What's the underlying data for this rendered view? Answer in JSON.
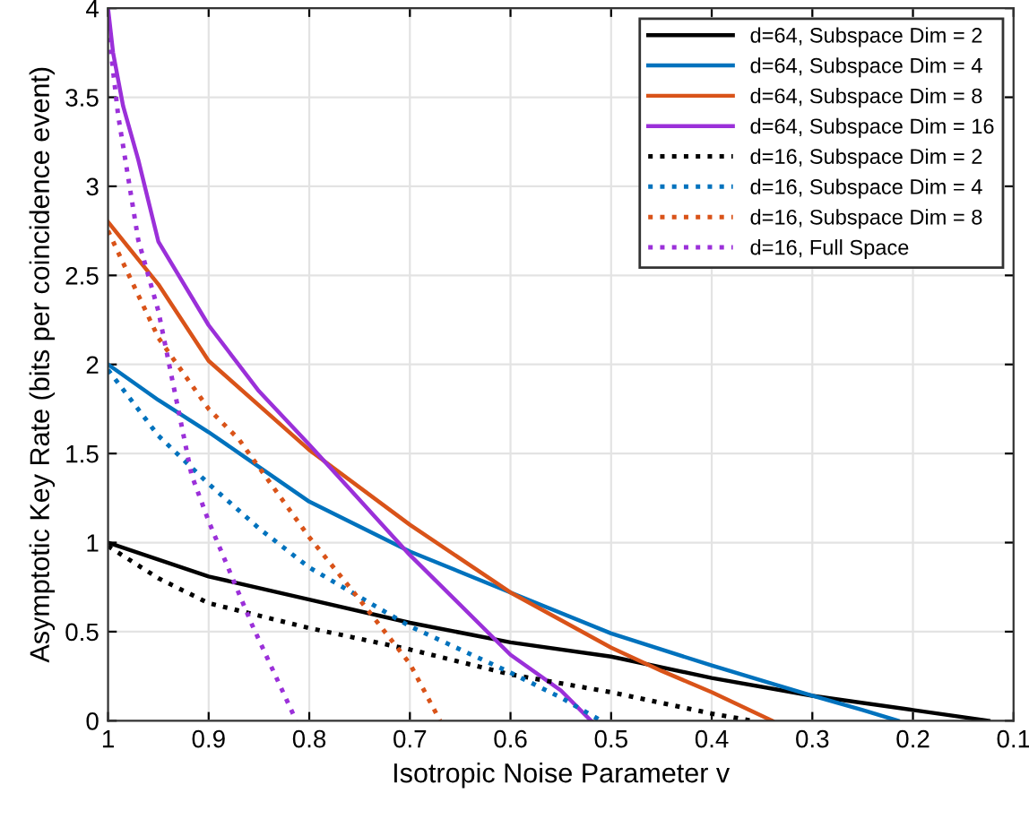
{
  "chart_data": {
    "type": "line",
    "xlabel": "Isotropic Noise Parameter v",
    "ylabel": "Asymptotic Key Rate (bits per coincidence event)",
    "xlim": [
      1,
      0.1
    ],
    "xticks": [
      1,
      0.9,
      0.8,
      0.7,
      0.6,
      0.5,
      0.4,
      0.3,
      0.2,
      0.1
    ],
    "ylim": [
      0,
      4
    ],
    "yticks": [
      0,
      0.5,
      1,
      1.5,
      2,
      2.5,
      3,
      3.5,
      4
    ],
    "grid": true,
    "legend": "top right",
    "series": [
      {
        "name": "d=64, Subspace Dim = 2",
        "color": "#000000",
        "line_style": "solid",
        "x": [
          1,
          0.9,
          0.8,
          0.7,
          0.6,
          0.5,
          0.4,
          0.3,
          0.2,
          0.125
        ],
        "values": [
          1,
          0.81,
          0.68,
          0.55,
          0.44,
          0.36,
          0.24,
          0.14,
          0.06,
          0
        ]
      },
      {
        "name": "d=64, Subspace Dim = 4",
        "color": "#0072bd",
        "line_style": "solid",
        "x": [
          1,
          0.95,
          0.9,
          0.8,
          0.7,
          0.6,
          0.5,
          0.4,
          0.3,
          0.25,
          0.215
        ],
        "values": [
          2,
          1.8,
          1.62,
          1.23,
          0.95,
          0.72,
          0.49,
          0.31,
          0.14,
          0.06,
          0
        ]
      },
      {
        "name": "d=64, Subspace Dim = 8",
        "color": "#d95319",
        "line_style": "solid",
        "x": [
          1,
          0.95,
          0.9,
          0.8,
          0.7,
          0.6,
          0.5,
          0.45,
          0.4,
          0.34
        ],
        "values": [
          2.8,
          2.45,
          2.02,
          1.52,
          1.1,
          0.72,
          0.41,
          0.28,
          0.16,
          0
        ]
      },
      {
        "name": "d=64, Subspace Dim = 16",
        "color": "#9b30d9",
        "line_style": "solid",
        "x": [
          1,
          0.995,
          0.985,
          0.97,
          0.95,
          0.9,
          0.85,
          0.8,
          0.7,
          0.6,
          0.55,
          0.52
        ],
        "values": [
          4,
          3.75,
          3.45,
          3.15,
          2.69,
          2.22,
          1.85,
          1.55,
          0.93,
          0.37,
          0.17,
          0
        ]
      },
      {
        "name": "d=16, Subspace Dim = 2",
        "color": "#000000",
        "line_style": "dotted",
        "x": [
          1,
          0.95,
          0.9,
          0.8,
          0.7,
          0.6,
          0.5,
          0.45,
          0.4,
          0.36
        ],
        "values": [
          0.98,
          0.8,
          0.66,
          0.52,
          0.4,
          0.26,
          0.16,
          0.1,
          0.04,
          0
        ]
      },
      {
        "name": "d=16, Subspace Dim = 4",
        "color": "#0072bd",
        "line_style": "dotted",
        "x": [
          1,
          0.95,
          0.9,
          0.85,
          0.8,
          0.7,
          0.6,
          0.55,
          0.51
        ],
        "values": [
          1.97,
          1.6,
          1.33,
          1.08,
          0.86,
          0.53,
          0.27,
          0.13,
          0
        ]
      },
      {
        "name": "d=16, Subspace Dim = 8",
        "color": "#d95319",
        "line_style": "dotted",
        "x": [
          1,
          0.95,
          0.9,
          0.87,
          0.8,
          0.75,
          0.7,
          0.67
        ],
        "values": [
          2.75,
          2.15,
          1.75,
          1.58,
          1.03,
          0.68,
          0.32,
          0
        ]
      },
      {
        "name": "d=16, Full Space",
        "color": "#9b30d9",
        "line_style": "dotted",
        "x": [
          1,
          0.99,
          0.97,
          0.95,
          0.917,
          0.9,
          0.857,
          0.813
        ],
        "values": [
          3.9,
          3.4,
          2.7,
          2.3,
          1.38,
          1.12,
          0.54,
          0
        ]
      }
    ]
  }
}
